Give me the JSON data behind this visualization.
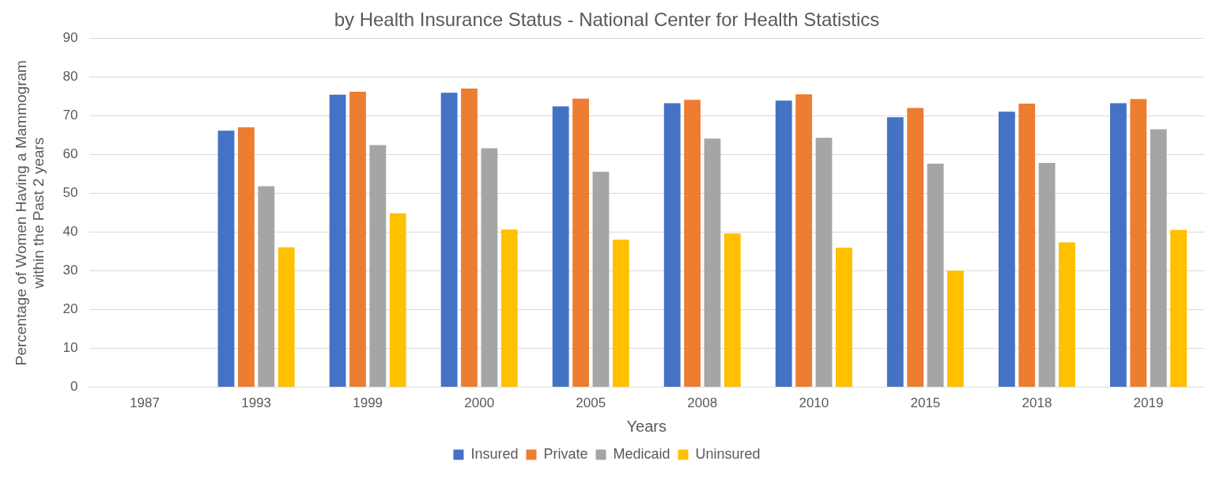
{
  "chart_data": {
    "type": "bar",
    "title": "by Health Insurance Status - National Center for Health Statistics",
    "xlabel": "Years",
    "ylabel": "Percentage of Women Having a Mammogram within the Past 2 years",
    "categories": [
      "1987",
      "1993",
      "1999",
      "2000",
      "2005",
      "2008",
      "2010",
      "2015",
      "2018",
      "2019"
    ],
    "series": [
      {
        "name": "Insured",
        "color": "#4472c4",
        "values": [
          null,
          66.2,
          75.5,
          76.0,
          72.5,
          73.3,
          74.0,
          69.7,
          71.1,
          73.3
        ]
      },
      {
        "name": "Private",
        "color": "#ed7d31",
        "values": [
          null,
          67.1,
          76.3,
          77.1,
          74.5,
          74.2,
          75.6,
          72.1,
          73.2,
          74.4
        ]
      },
      {
        "name": "Medicaid",
        "color": "#a5a5a5",
        "values": [
          null,
          51.9,
          62.5,
          61.7,
          55.6,
          64.2,
          64.4,
          57.7,
          57.9,
          66.6
        ]
      },
      {
        "name": "Uninsured",
        "color": "#ffc000",
        "values": [
          null,
          36.1,
          44.9,
          40.7,
          38.1,
          39.7,
          36.0,
          30.1,
          37.4,
          40.6
        ]
      }
    ],
    "ylim": [
      0,
      90
    ],
    "yticks": [
      0,
      10,
      20,
      30,
      40,
      50,
      60,
      70,
      80,
      90
    ],
    "grid": "y",
    "legend": "bottom"
  }
}
